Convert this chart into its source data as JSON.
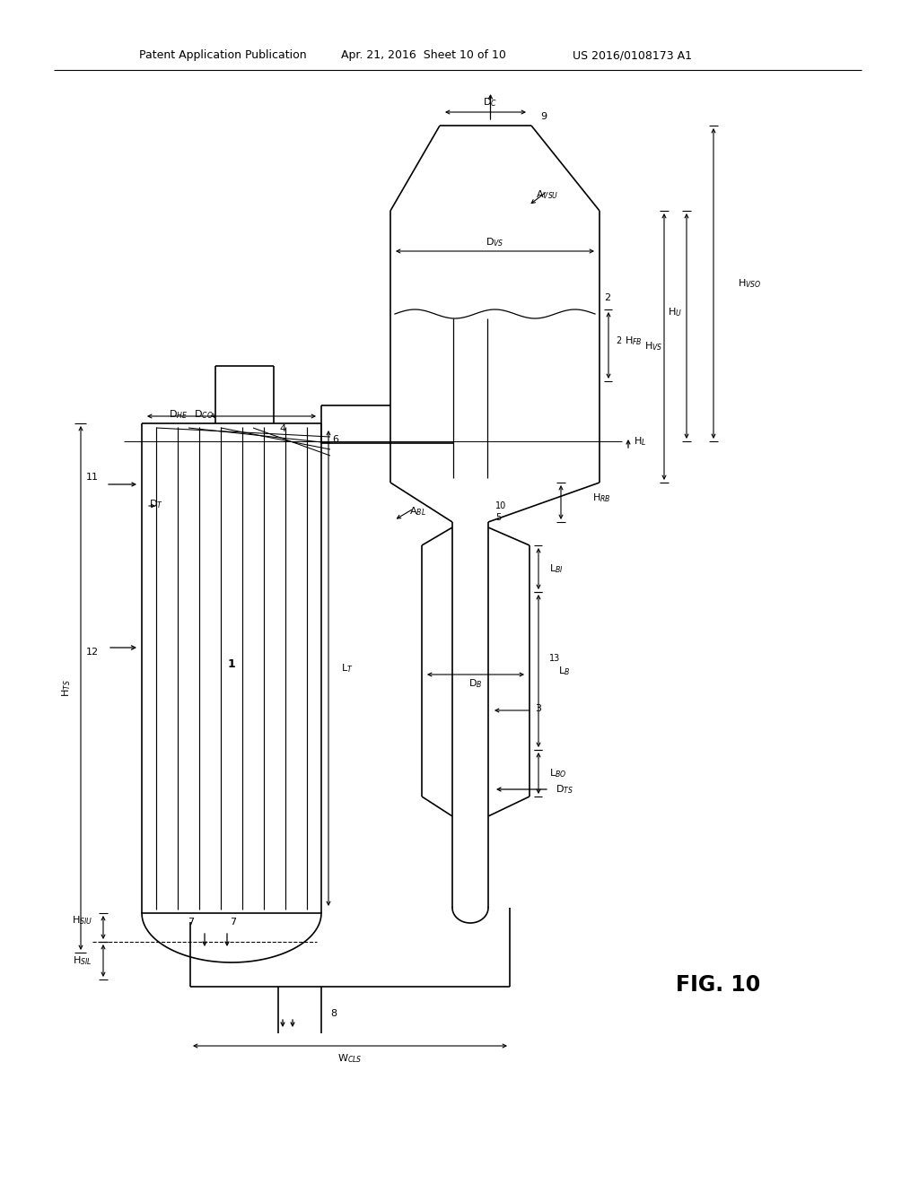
{
  "header_left": "Patent Application Publication",
  "header_mid": "Apr. 21, 2016  Sheet 10 of 10",
  "header_right": "US 2016/0108173 A1",
  "fig_label": "FIG. 10",
  "bg_color": "#ffffff"
}
